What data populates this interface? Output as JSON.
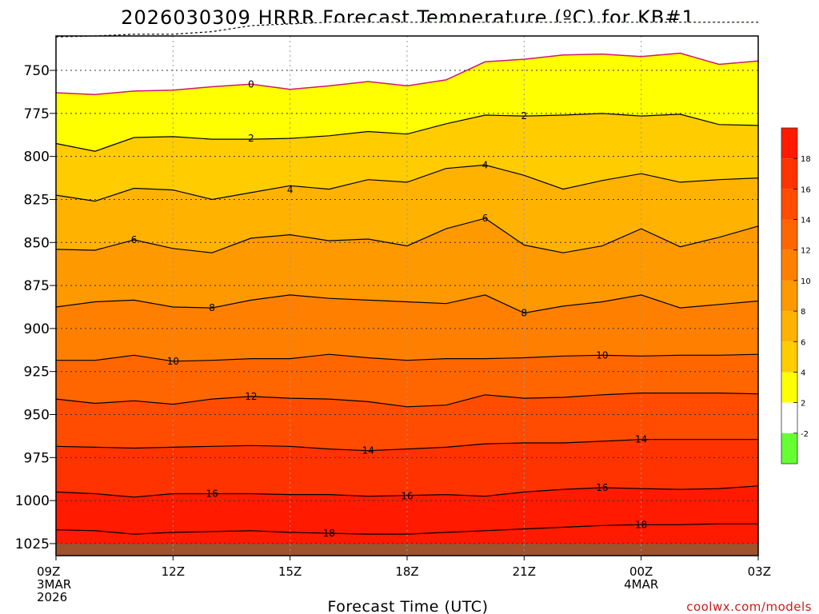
{
  "chart_data": {
    "type": "contour",
    "title": "2026030309 HRRR Forecast Temperature (ºC) for KB#1",
    "xlabel": "Forecast Time (UTC)",
    "ylabel": "",
    "credit": "coolwx.com/models",
    "x_ticks": [
      {
        "hours": 0,
        "label": "09Z",
        "sub": [
          "3MAR",
          "2026"
        ]
      },
      {
        "hours": 3,
        "label": "12Z",
        "sub": []
      },
      {
        "hours": 6,
        "label": "15Z",
        "sub": []
      },
      {
        "hours": 9,
        "label": "18Z",
        "sub": []
      },
      {
        "hours": 12,
        "label": "21Z",
        "sub": []
      },
      {
        "hours": 15,
        "label": "00Z",
        "sub": [
          "4MAR"
        ]
      },
      {
        "hours": 18,
        "label": "03Z",
        "sub": []
      }
    ],
    "xlim": [
      0,
      18
    ],
    "y_ticks": [
      750,
      775,
      800,
      825,
      850,
      875,
      900,
      925,
      950,
      975,
      1000,
      1025
    ],
    "ylim_hpa": [
      730,
      1032
    ],
    "surface_pressure_hpa": 1025,
    "colorbar": {
      "tick_labels": [
        "18",
        "16",
        "14",
        "12",
        "10",
        "8",
        "6",
        "4",
        "2",
        "-2"
      ],
      "bands": [
        {
          "value": 19,
          "color": "#ff1a00"
        },
        {
          "value": 17,
          "color": "#ff3300"
        },
        {
          "value": 15,
          "color": "#ff4c00"
        },
        {
          "value": 13,
          "color": "#ff6600"
        },
        {
          "value": 11,
          "color": "#ff8000"
        },
        {
          "value": 9,
          "color": "#ff9900"
        },
        {
          "value": 7,
          "color": "#ffb300"
        },
        {
          "value": 5,
          "color": "#ffcc00"
        },
        {
          "value": 3,
          "color": "#ffff00"
        },
        {
          "value": 0,
          "color": "#ffffff"
        },
        {
          "value": -3,
          "color": "#66ff33"
        }
      ]
    },
    "colors": {
      "zero_line": "#cc1a70",
      "ground": "#a0522d",
      "below_minus2": "#66ff33",
      "above_0": "#ffffff"
    },
    "x_hours": [
      0,
      1,
      2,
      3,
      4,
      5,
      6,
      7,
      8,
      9,
      10,
      11,
      12,
      13,
      14,
      15,
      16,
      17,
      18
    ],
    "contours": [
      {
        "value": -2,
        "label": "",
        "pressure": [
          730.5,
          730,
          729,
          729,
          727.5,
          724,
          723,
          722,
          722,
          722,
          722,
          722,
          722,
          722,
          722,
          722,
          722,
          722,
          722
        ]
      },
      {
        "value": 0,
        "label": "0",
        "pressure": [
          763,
          764,
          762,
          761.5,
          759.5,
          758,
          761,
          759,
          756.5,
          759,
          755.5,
          745,
          743.5,
          741,
          740.5,
          742,
          740,
          746.5,
          744.5
        ]
      },
      {
        "value": 2,
        "label": "2",
        "pressure": [
          792.5,
          797,
          789,
          788.5,
          790,
          790,
          789.5,
          788,
          785.5,
          787,
          781,
          776,
          776.5,
          776,
          775,
          776.5,
          775.5,
          781.5,
          782
        ]
      },
      {
        "value": 4,
        "label": "4",
        "pressure": [
          822.5,
          826,
          818.5,
          819.5,
          825,
          821,
          817,
          819,
          813.5,
          815,
          807,
          805,
          811,
          819,
          814,
          810,
          815,
          813.5,
          812.5
        ]
      },
      {
        "value": 6,
        "label": "6",
        "pressure": [
          854,
          854.5,
          848.5,
          853.5,
          856,
          847.5,
          845.5,
          849,
          848,
          852,
          842,
          836,
          851.5,
          856,
          852,
          842,
          852.5,
          847,
          840.5
        ]
      },
      {
        "value": 8,
        "label": "8",
        "pressure": [
          887.5,
          884.5,
          883.5,
          887.5,
          888,
          883.5,
          880.5,
          882.5,
          883.5,
          884.5,
          885.5,
          880.5,
          891,
          887,
          884.5,
          880.5,
          888,
          886,
          884
        ]
      },
      {
        "value": 10,
        "label": "10",
        "pressure": [
          918.5,
          918.5,
          915.5,
          919,
          918.5,
          917.5,
          917.5,
          915,
          917,
          918.5,
          917.5,
          917.5,
          917,
          916,
          915.5,
          916,
          915.5,
          915.5,
          915
        ]
      },
      {
        "value": 12,
        "label": "12",
        "pressure": [
          941,
          943.5,
          942,
          944,
          941,
          939.5,
          940.5,
          941,
          942.5,
          945.5,
          944.5,
          938.5,
          940.5,
          940,
          938.5,
          937.5,
          937.5,
          937.5,
          938
        ]
      },
      {
        "value": 14,
        "label": "14",
        "pressure": [
          968.5,
          969,
          969.5,
          969,
          968.5,
          968,
          968.5,
          970,
          971,
          970,
          969,
          967,
          966.5,
          966.5,
          965.5,
          964.5,
          964.5,
          964.5,
          964.5
        ]
      },
      {
        "value": 16,
        "label": "16",
        "pressure": [
          995,
          996,
          998,
          996,
          996,
          996,
          996.5,
          996.5,
          997.5,
          997,
          996.5,
          997.5,
          995,
          993.5,
          992.5,
          993,
          993.5,
          993,
          991.5
        ]
      },
      {
        "value": 18,
        "label": "18",
        "pressure": [
          1017,
          1017.5,
          1019.5,
          1018.5,
          1018,
          1017.5,
          1018.5,
          1019,
          1019.5,
          1019.5,
          1018.5,
          1017.5,
          1016.5,
          1015.5,
          1014.5,
          1014,
          1014,
          1013.5,
          1013.5
        ]
      }
    ],
    "label_positions": [
      {
        "label": "0",
        "hours": 5,
        "pressure": 758
      },
      {
        "label": "2",
        "hours": 5,
        "pressure": 789.5
      },
      {
        "label": "2",
        "hours": 12,
        "pressure": 776.5
      },
      {
        "label": "4",
        "hours": 6,
        "pressure": 819.5
      },
      {
        "label": "4",
        "hours": 11,
        "pressure": 805
      },
      {
        "label": "6",
        "hours": 2,
        "pressure": 848.5
      },
      {
        "label": "6",
        "hours": 11,
        "pressure": 836
      },
      {
        "label": "8",
        "hours": 4,
        "pressure": 888
      },
      {
        "label": "8",
        "hours": 12,
        "pressure": 891
      },
      {
        "label": "10",
        "hours": 3,
        "pressure": 919
      },
      {
        "label": "10",
        "hours": 14,
        "pressure": 915.5
      },
      {
        "label": "12",
        "hours": 5,
        "pressure": 939.5
      },
      {
        "label": "14",
        "hours": 8,
        "pressure": 971
      },
      {
        "label": "14",
        "hours": 15,
        "pressure": 964.5
      },
      {
        "label": "16",
        "hours": 4,
        "pressure": 996
      },
      {
        "label": "16",
        "hours": 9,
        "pressure": 997.5
      },
      {
        "label": "16",
        "hours": 14,
        "pressure": 992.5
      },
      {
        "label": "18",
        "hours": 7,
        "pressure": 1019
      },
      {
        "label": "18",
        "hours": 15,
        "pressure": 1014
      }
    ]
  }
}
